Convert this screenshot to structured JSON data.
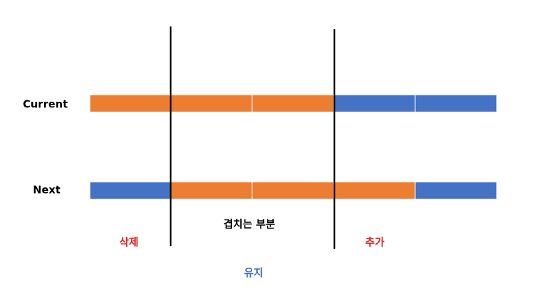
{
  "rows": [
    {
      "label": "Current"
    },
    {
      "label": "Next"
    }
  ],
  "labels": {
    "overlap": "겹치는 부분",
    "delete": "삭제",
    "add": "추가",
    "keep": "유지"
  }
}
